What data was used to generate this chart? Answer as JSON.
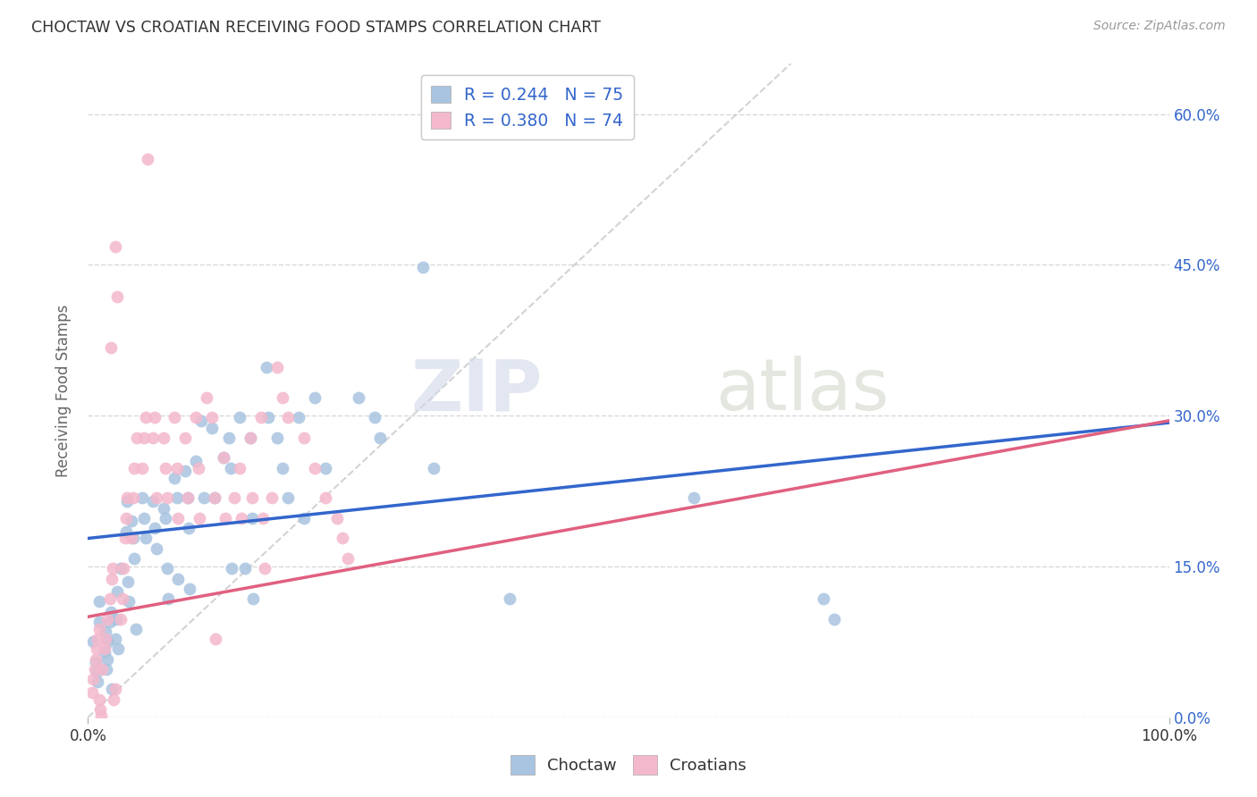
{
  "title": "CHOCTAW VS CROATIAN RECEIVING FOOD STAMPS CORRELATION CHART",
  "source": "Source: ZipAtlas.com",
  "ylabel": "Receiving Food Stamps",
  "xlim": [
    0.0,
    1.0
  ],
  "ylim": [
    -0.02,
    0.65
  ],
  "plot_ylim": [
    0.0,
    0.65
  ],
  "choctaw_color": "#a8c4e0",
  "croatian_color": "#f4b8cc",
  "choctaw_line_color": "#3366cc",
  "croatian_line_color": "#e06080",
  "diagonal_color": "#c8c8c8",
  "R_choctaw": 0.244,
  "N_choctaw": 75,
  "R_croatian": 0.38,
  "N_croatian": 74,
  "legend_label_choctaw": "Choctaw",
  "legend_label_croatian": "Croatians",
  "watermark_zip": "ZIP",
  "watermark_atlas": "atlas",
  "grid_color": "#d8d8d8",
  "background_color": "#ffffff",
  "ylabel_ticks": [
    0.0,
    0.15,
    0.3,
    0.45,
    0.6
  ],
  "ylabel_tick_labels": [
    "0.0%",
    "15.0%",
    "30.0%",
    "45.0%",
    "60.0%"
  ],
  "choctaw_line_x": [
    0.0,
    1.0
  ],
  "choctaw_line_y": [
    0.178,
    0.293
  ],
  "croatian_line_x": [
    0.0,
    1.0
  ],
  "croatian_line_y": [
    0.1,
    0.295
  ],
  "choctaw_points": [
    [
      0.005,
      0.075
    ],
    [
      0.007,
      0.055
    ],
    [
      0.008,
      0.045
    ],
    [
      0.009,
      0.035
    ],
    [
      0.01,
      0.095
    ],
    [
      0.01,
      0.115
    ],
    [
      0.015,
      0.065
    ],
    [
      0.016,
      0.085
    ],
    [
      0.017,
      0.048
    ],
    [
      0.018,
      0.058
    ],
    [
      0.019,
      0.075
    ],
    [
      0.02,
      0.095
    ],
    [
      0.021,
      0.105
    ],
    [
      0.022,
      0.028
    ],
    [
      0.025,
      0.078
    ],
    [
      0.026,
      0.098
    ],
    [
      0.027,
      0.125
    ],
    [
      0.028,
      0.068
    ],
    [
      0.03,
      0.148
    ],
    [
      0.035,
      0.185
    ],
    [
      0.036,
      0.215
    ],
    [
      0.037,
      0.135
    ],
    [
      0.038,
      0.115
    ],
    [
      0.04,
      0.195
    ],
    [
      0.042,
      0.178
    ],
    [
      0.043,
      0.158
    ],
    [
      0.044,
      0.088
    ],
    [
      0.05,
      0.218
    ],
    [
      0.052,
      0.198
    ],
    [
      0.053,
      0.178
    ],
    [
      0.06,
      0.215
    ],
    [
      0.062,
      0.188
    ],
    [
      0.063,
      0.168
    ],
    [
      0.07,
      0.208
    ],
    [
      0.072,
      0.198
    ],
    [
      0.073,
      0.148
    ],
    [
      0.074,
      0.118
    ],
    [
      0.08,
      0.238
    ],
    [
      0.082,
      0.218
    ],
    [
      0.083,
      0.138
    ],
    [
      0.09,
      0.245
    ],
    [
      0.092,
      0.218
    ],
    [
      0.093,
      0.188
    ],
    [
      0.094,
      0.128
    ],
    [
      0.1,
      0.255
    ],
    [
      0.105,
      0.295
    ],
    [
      0.107,
      0.218
    ],
    [
      0.115,
      0.288
    ],
    [
      0.117,
      0.218
    ],
    [
      0.125,
      0.258
    ],
    [
      0.13,
      0.278
    ],
    [
      0.132,
      0.248
    ],
    [
      0.133,
      0.148
    ],
    [
      0.14,
      0.298
    ],
    [
      0.145,
      0.148
    ],
    [
      0.15,
      0.278
    ],
    [
      0.152,
      0.198
    ],
    [
      0.153,
      0.118
    ],
    [
      0.165,
      0.348
    ],
    [
      0.167,
      0.298
    ],
    [
      0.175,
      0.278
    ],
    [
      0.18,
      0.248
    ],
    [
      0.185,
      0.218
    ],
    [
      0.195,
      0.298
    ],
    [
      0.2,
      0.198
    ],
    [
      0.21,
      0.318
    ],
    [
      0.22,
      0.248
    ],
    [
      0.25,
      0.318
    ],
    [
      0.265,
      0.298
    ],
    [
      0.27,
      0.278
    ],
    [
      0.32,
      0.248
    ],
    [
      0.39,
      0.118
    ],
    [
      0.56,
      0.218
    ],
    [
      0.68,
      0.118
    ],
    [
      0.69,
      0.098
    ],
    [
      0.31,
      0.448
    ]
  ],
  "croatian_points": [
    [
      0.004,
      0.025
    ],
    [
      0.005,
      0.038
    ],
    [
      0.006,
      0.048
    ],
    [
      0.007,
      0.058
    ],
    [
      0.008,
      0.068
    ],
    [
      0.009,
      0.078
    ],
    [
      0.01,
      0.088
    ],
    [
      0.01,
      0.018
    ],
    [
      0.011,
      0.008
    ],
    [
      0.012,
      0.002
    ],
    [
      0.013,
      0.048
    ],
    [
      0.015,
      0.068
    ],
    [
      0.016,
      0.078
    ],
    [
      0.018,
      0.098
    ],
    [
      0.02,
      0.118
    ],
    [
      0.022,
      0.138
    ],
    [
      0.023,
      0.148
    ],
    [
      0.024,
      0.018
    ],
    [
      0.025,
      0.028
    ],
    [
      0.03,
      0.098
    ],
    [
      0.032,
      0.118
    ],
    [
      0.033,
      0.148
    ],
    [
      0.034,
      0.178
    ],
    [
      0.035,
      0.198
    ],
    [
      0.036,
      0.218
    ],
    [
      0.04,
      0.178
    ],
    [
      0.042,
      0.218
    ],
    [
      0.043,
      0.248
    ],
    [
      0.045,
      0.278
    ],
    [
      0.05,
      0.248
    ],
    [
      0.052,
      0.278
    ],
    [
      0.053,
      0.298
    ],
    [
      0.06,
      0.278
    ],
    [
      0.062,
      0.298
    ],
    [
      0.063,
      0.218
    ],
    [
      0.07,
      0.278
    ],
    [
      0.072,
      0.248
    ],
    [
      0.073,
      0.218
    ],
    [
      0.08,
      0.298
    ],
    [
      0.082,
      0.248
    ],
    [
      0.083,
      0.198
    ],
    [
      0.09,
      0.278
    ],
    [
      0.092,
      0.218
    ],
    [
      0.1,
      0.298
    ],
    [
      0.102,
      0.248
    ],
    [
      0.103,
      0.198
    ],
    [
      0.11,
      0.318
    ],
    [
      0.115,
      0.298
    ],
    [
      0.117,
      0.218
    ],
    [
      0.118,
      0.078
    ],
    [
      0.125,
      0.258
    ],
    [
      0.127,
      0.198
    ],
    [
      0.135,
      0.218
    ],
    [
      0.14,
      0.248
    ],
    [
      0.142,
      0.198
    ],
    [
      0.15,
      0.278
    ],
    [
      0.152,
      0.218
    ],
    [
      0.16,
      0.298
    ],
    [
      0.162,
      0.198
    ],
    [
      0.163,
      0.148
    ],
    [
      0.17,
      0.218
    ],
    [
      0.175,
      0.348
    ],
    [
      0.18,
      0.318
    ],
    [
      0.185,
      0.298
    ],
    [
      0.2,
      0.278
    ],
    [
      0.21,
      0.248
    ],
    [
      0.22,
      0.218
    ],
    [
      0.23,
      0.198
    ],
    [
      0.235,
      0.178
    ],
    [
      0.24,
      0.158
    ],
    [
      0.055,
      0.555
    ],
    [
      0.025,
      0.468
    ],
    [
      0.027,
      0.418
    ],
    [
      0.021,
      0.368
    ]
  ]
}
